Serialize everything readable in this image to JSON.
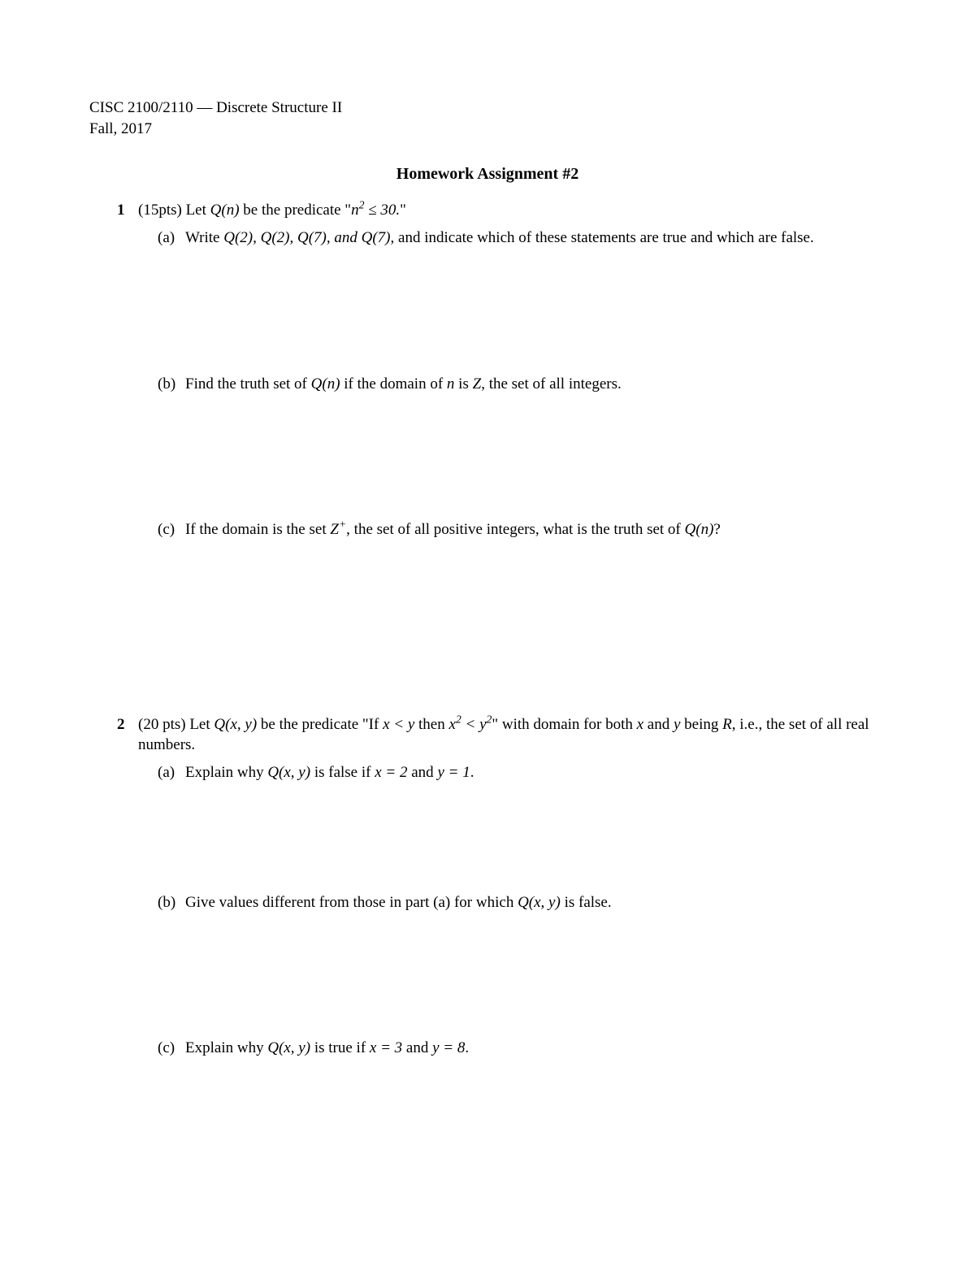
{
  "header": {
    "course": "CISC 2100/2110 — Discrete Structure II",
    "term": "Fall, 2017"
  },
  "title": "Homework Assignment #2",
  "problems": [
    {
      "number": "1",
      "points": "(15pts)",
      "intro_pre": "Let ",
      "intro_mid": " be the predicate \"",
      "intro_post": "\"",
      "predicate_name": "Q(n)",
      "predicate_body": "n² ≤ 30.",
      "parts": [
        {
          "label": "(a)",
          "text_pre": "Write ",
          "q_list": "Q(2), Q(2), Q(7), and Q(7)",
          "text_post": ", and indicate which of these statements are true and which are false."
        },
        {
          "label": "(b)",
          "text_pre": "Find the truth set of ",
          "q": "Q(n)",
          "mid": " if the domain of ",
          "var": "n",
          "mid2": " is ",
          "set": "Z",
          "tail": ", the set of all integers."
        },
        {
          "label": "(c)",
          "text_pre": "If the domain is the set ",
          "set": "Z⁺",
          "mid": ", the set of all positive integers, what is the truth set of ",
          "q": "Q(n)",
          "tail": "?"
        }
      ]
    },
    {
      "number": "2",
      "points": "(20 pts)",
      "intro_pre": "Let ",
      "predicate_name": "Q(x, y)",
      "intro_mid": " be the predicate \"If ",
      "cond1": "x < y",
      "intro_mid2": " then ",
      "cond2": "x² < y²",
      "intro_mid3": "\" with domain for both ",
      "varx": "x",
      "intro_mid4": " and ",
      "vary": "y",
      "intro_mid5": " being ",
      "set": "R",
      "intro_tail": ", i.e., the set of all real numbers.",
      "parts": [
        {
          "label": "(a)",
          "text_pre": "Explain why ",
          "q": "Q(x, y)",
          "mid": " is false if ",
          "assign": "x = 2",
          "mid2": " and ",
          "assign2": "y = 1",
          "tail": "."
        },
        {
          "label": "(b)",
          "text_pre": "Give values different from those in part (a) for which ",
          "q": "Q(x, y)",
          "tail": " is false."
        },
        {
          "label": "(c)",
          "text_pre": "Explain why ",
          "q": "Q(x, y)",
          "mid": " is true if ",
          "assign": "x = 3",
          "mid2": " and ",
          "assign2": "y = 8",
          "tail": "."
        }
      ]
    }
  ],
  "colors": {
    "text": "#000000",
    "background": "#ffffff"
  },
  "typography": {
    "body_fontsize_pt": 14,
    "title_fontsize_pt": 15,
    "font_family": "Times New Roman"
  }
}
